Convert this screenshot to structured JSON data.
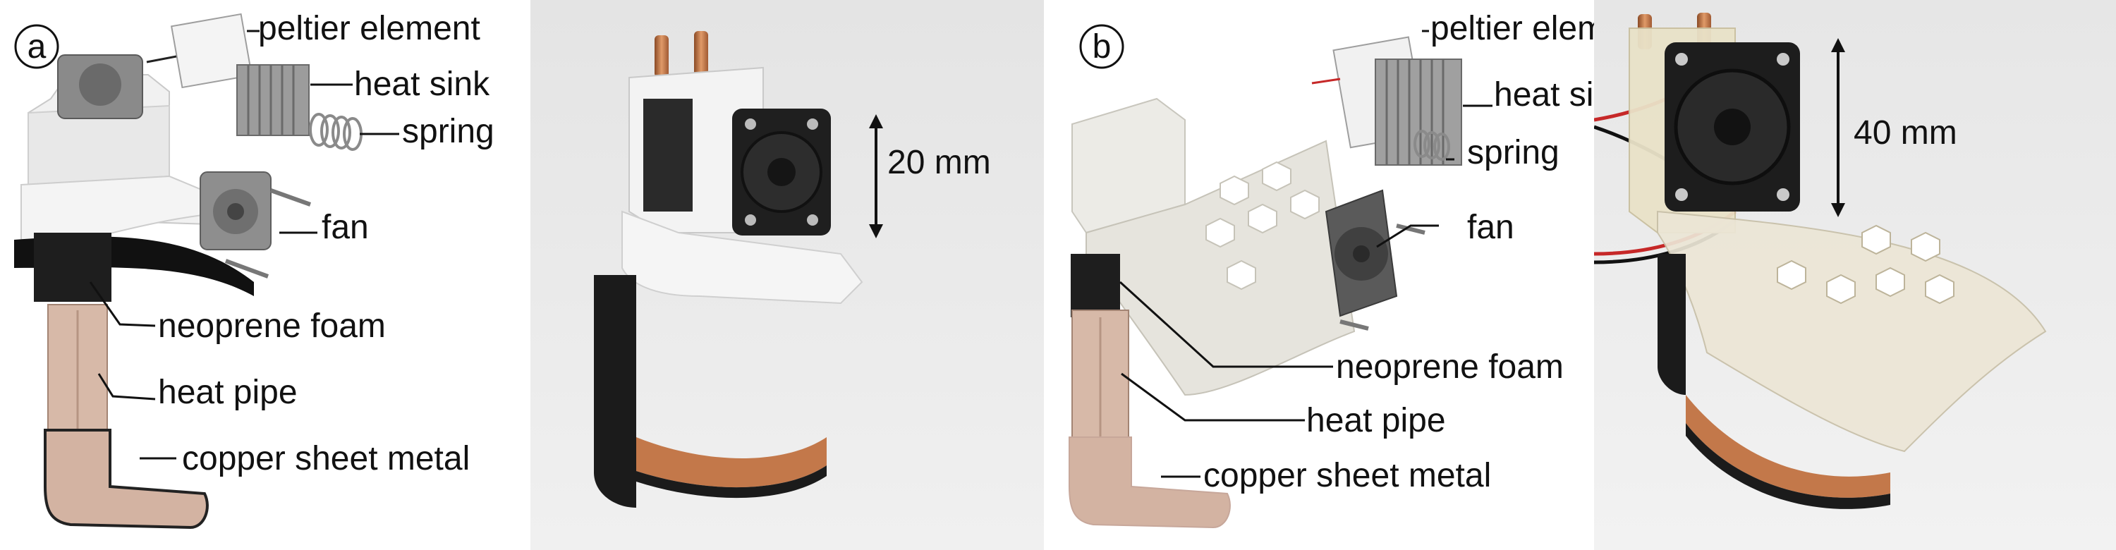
{
  "panels": {
    "a": {
      "letter": "a",
      "labels": {
        "peltier": "peltier element",
        "heatsink": "heat sink",
        "spring": "spring",
        "fan": "fan",
        "foam": "neoprene foam",
        "pipe": "heat pipe",
        "copper": "copper sheet metal"
      }
    },
    "photo_a": {
      "dimension": "20 mm"
    },
    "b": {
      "letter": "b",
      "labels": {
        "peltier": "peltier element",
        "heatsink": "heat sink",
        "spring": "spring",
        "fan": "fan",
        "foam": "neoprene foam",
        "pipe": "heat pipe",
        "copper": "copper sheet metal"
      }
    },
    "photo_b": {
      "dimension": "40 mm"
    }
  },
  "colors": {
    "white_print": "#f2f2f2",
    "clear_print": "#eae3cc",
    "foam": "#1e1e1e",
    "copper": "#c3784a",
    "copper_render": "#d3b3a2",
    "fan_dark": "#2a2a2a",
    "metal": "#9c9c9c",
    "photo_bg": "#e7e7e7"
  }
}
